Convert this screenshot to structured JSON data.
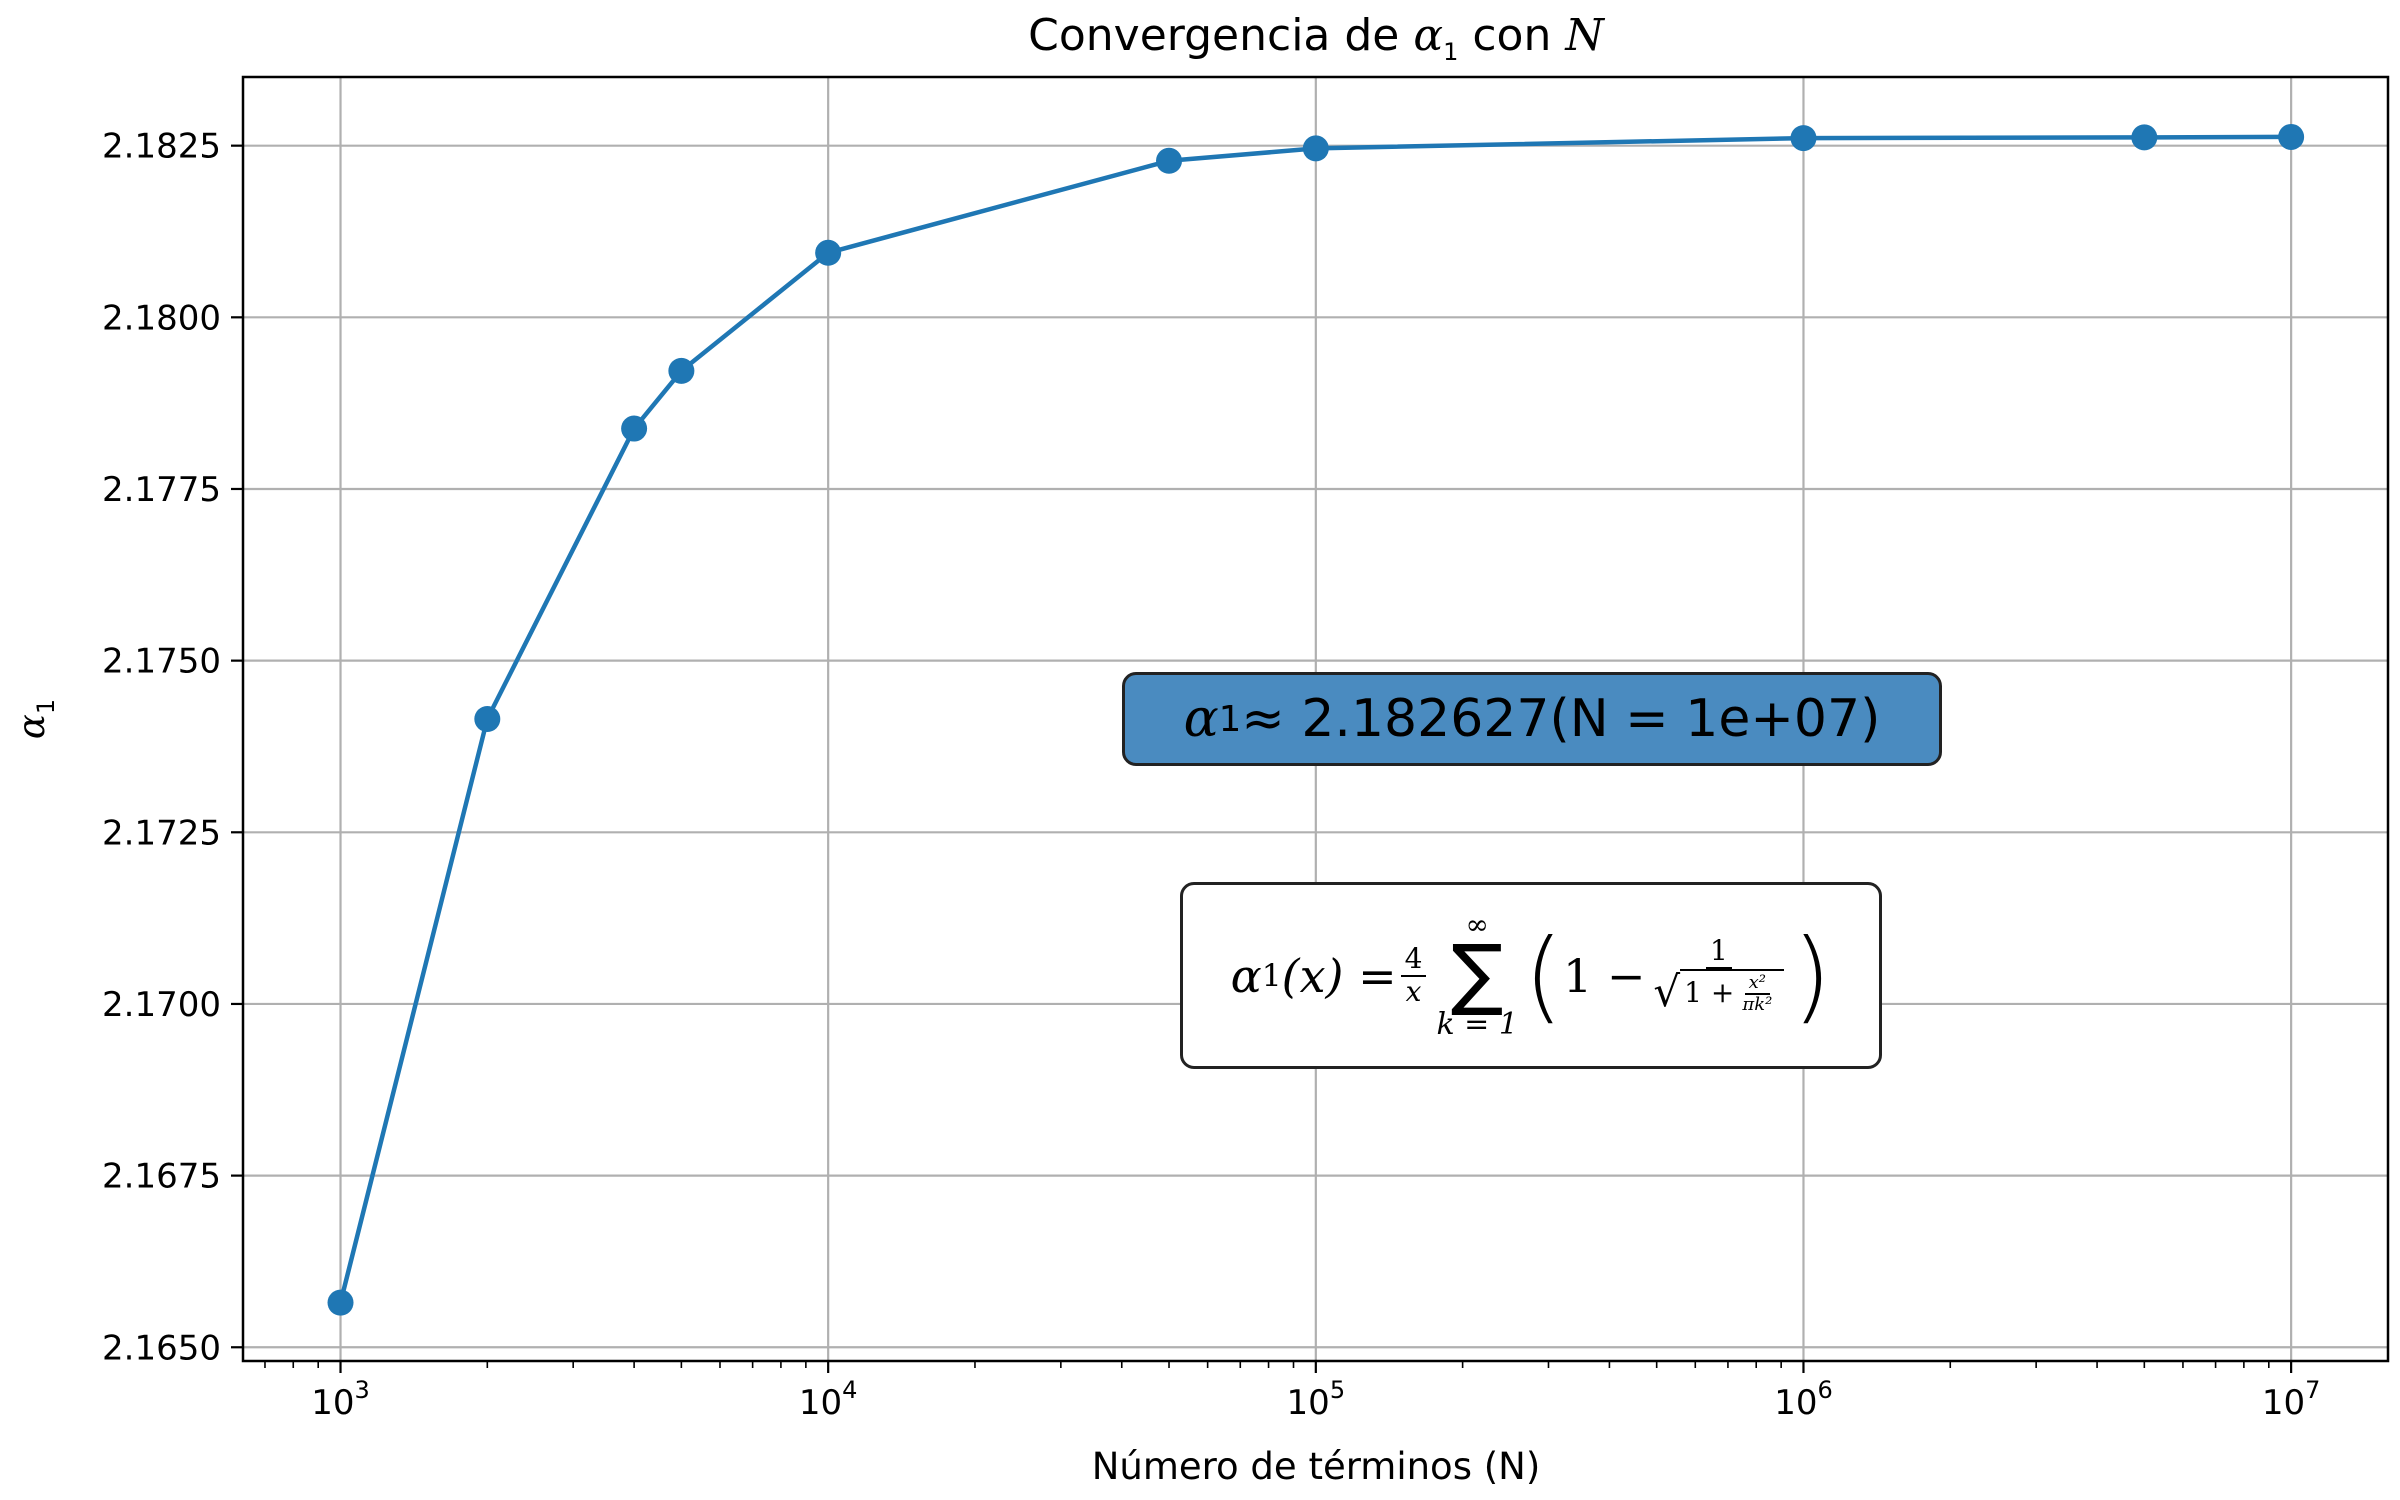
{
  "chart_data": {
    "type": "line",
    "title_prefix": "Convergencia de ",
    "title_alpha": "α",
    "title_sub": "1",
    "title_mid": " con ",
    "title_var": "N",
    "xlabel": "Número de términos (N)",
    "ylabel_alpha": "α",
    "ylabel_sub": "1",
    "x_scale": "log",
    "xlim": [
      631,
      15800000
    ],
    "ylim": [
      2.1648,
      2.1835
    ],
    "grid": true,
    "x_major_ticks": [
      {
        "value": 1000,
        "base": "10",
        "exp": "3"
      },
      {
        "value": 10000,
        "base": "10",
        "exp": "4"
      },
      {
        "value": 100000,
        "base": "10",
        "exp": "5"
      },
      {
        "value": 1000000,
        "base": "10",
        "exp": "6"
      },
      {
        "value": 10000000,
        "base": "10",
        "exp": "7"
      }
    ],
    "y_ticks": [
      {
        "value": 2.165,
        "label": "2.1650"
      },
      {
        "value": 2.1675,
        "label": "2.1675"
      },
      {
        "value": 2.17,
        "label": "2.1700"
      },
      {
        "value": 2.1725,
        "label": "2.1725"
      },
      {
        "value": 2.175,
        "label": "2.1750"
      },
      {
        "value": 2.1775,
        "label": "2.1775"
      },
      {
        "value": 2.18,
        "label": "2.1800"
      },
      {
        "value": 2.1825,
        "label": "2.1825"
      }
    ],
    "series": [
      {
        "color": "#1f77b4",
        "marker": "circle",
        "x": [
          1000,
          2000,
          4000,
          5000,
          10000,
          50000,
          100000,
          1000000,
          5000000,
          10000000
        ],
        "y": [
          2.16565,
          2.17415,
          2.17838,
          2.17922,
          2.18094,
          2.18228,
          2.18246,
          2.18261,
          2.18262,
          2.182627
        ]
      }
    ]
  },
  "annotations": {
    "value_box": {
      "alpha": "α",
      "sub": "1",
      "text": " ≈ 2.182627(N = 1e+07)",
      "bg_color": "#4a8bc0"
    },
    "formula_box": {
      "lhs_alpha": "α",
      "lhs_sub": "1",
      "lhs_arg": "(x) = ",
      "frac_num": "4",
      "frac_den": "x",
      "sum_top": "∞",
      "sum_sigma": "∑",
      "sum_bottom": "k = 1",
      "paren_open": "(",
      "one_minus": "1 − ",
      "inner_num": "1",
      "sqrt_sign": "√",
      "sqrt_one_plus": "1 + ",
      "tiny_num": "x²",
      "tiny_den": "πk²",
      "paren_close": ")"
    }
  },
  "colors": {
    "line": "#1f77b4",
    "grid": "#b0b0b0",
    "axes": "#000000"
  }
}
